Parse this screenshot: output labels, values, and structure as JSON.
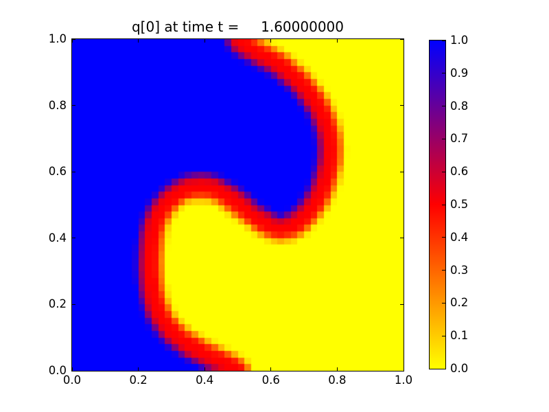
{
  "window": {
    "background": "#ffffff"
  },
  "chart_data": {
    "type": "heatmap",
    "title": "q[0] at time t =     1.60000000",
    "xlabel": "",
    "ylabel": "",
    "xlim": [
      0.0,
      1.0
    ],
    "ylim": [
      0.0,
      1.0
    ],
    "grid_on": false,
    "grid_resolution": 50,
    "xticks": [
      {
        "v": 0.0,
        "label": "0.0"
      },
      {
        "v": 0.2,
        "label": "0.2"
      },
      {
        "v": 0.4,
        "label": "0.4"
      },
      {
        "v": 0.6,
        "label": "0.6"
      },
      {
        "v": 0.8,
        "label": "0.8"
      },
      {
        "v": 1.0,
        "label": "1.0"
      }
    ],
    "yticks": [
      {
        "v": 0.0,
        "label": "0.0"
      },
      {
        "v": 0.2,
        "label": "0.2"
      },
      {
        "v": 0.4,
        "label": "0.4"
      },
      {
        "v": 0.6,
        "label": "0.6"
      },
      {
        "v": 0.8,
        "label": "0.8"
      },
      {
        "v": 1.0,
        "label": "1.0"
      }
    ],
    "colormap": {
      "stops": [
        [
          0.0,
          "#ffff00"
        ],
        [
          0.5,
          "#ff0000"
        ],
        [
          1.0,
          "#0000ff"
        ]
      ]
    },
    "colorbar": {
      "vmin": 0.0,
      "vmax": 1.0,
      "ticks": [
        {
          "v": 0.0,
          "label": "0.0"
        },
        {
          "v": 0.1,
          "label": "0.1"
        },
        {
          "v": 0.2,
          "label": "0.2"
        },
        {
          "v": 0.3,
          "label": "0.3"
        },
        {
          "v": 0.4,
          "label": "0.4"
        },
        {
          "v": 0.5,
          "label": "0.5"
        },
        {
          "v": 0.6,
          "label": "0.6"
        },
        {
          "v": 0.7,
          "label": "0.7"
        },
        {
          "v": 0.8,
          "label": "0.8"
        },
        {
          "v": 0.9,
          "label": "0.9"
        },
        {
          "v": 1.0,
          "label": "1.0"
        }
      ]
    },
    "field": {
      "region_values": {
        "left_of_interface": 1.0,
        "right_of_interface": 0.0
      },
      "interface_value": 0.5,
      "interface_points": [
        [
          0.5,
          0.0
        ],
        [
          0.47,
          0.018
        ],
        [
          0.44,
          0.032
        ],
        [
          0.41,
          0.045
        ],
        [
          0.38,
          0.062
        ],
        [
          0.345,
          0.082
        ],
        [
          0.315,
          0.105
        ],
        [
          0.29,
          0.13
        ],
        [
          0.27,
          0.158
        ],
        [
          0.255,
          0.19
        ],
        [
          0.245,
          0.225
        ],
        [
          0.239,
          0.265
        ],
        [
          0.236,
          0.31
        ],
        [
          0.237,
          0.355
        ],
        [
          0.241,
          0.4
        ],
        [
          0.248,
          0.438
        ],
        [
          0.26,
          0.47
        ],
        [
          0.278,
          0.498
        ],
        [
          0.3,
          0.522
        ],
        [
          0.328,
          0.542
        ],
        [
          0.36,
          0.554
        ],
        [
          0.395,
          0.557
        ],
        [
          0.43,
          0.549
        ],
        [
          0.465,
          0.53
        ],
        [
          0.5,
          0.505
        ],
        [
          0.535,
          0.477
        ],
        [
          0.57,
          0.452
        ],
        [
          0.6,
          0.435
        ],
        [
          0.628,
          0.427
        ],
        [
          0.655,
          0.432
        ],
        [
          0.683,
          0.448
        ],
        [
          0.71,
          0.474
        ],
        [
          0.735,
          0.508
        ],
        [
          0.755,
          0.548
        ],
        [
          0.769,
          0.59
        ],
        [
          0.778,
          0.632
        ],
        [
          0.78,
          0.672
        ],
        [
          0.776,
          0.712
        ],
        [
          0.764,
          0.754
        ],
        [
          0.744,
          0.796
        ],
        [
          0.716,
          0.838
        ],
        [
          0.682,
          0.876
        ],
        [
          0.645,
          0.908
        ],
        [
          0.607,
          0.934
        ],
        [
          0.568,
          0.956
        ],
        [
          0.532,
          0.976
        ],
        [
          0.508,
          0.992
        ],
        [
          0.503,
          1.0
        ]
      ]
    }
  }
}
